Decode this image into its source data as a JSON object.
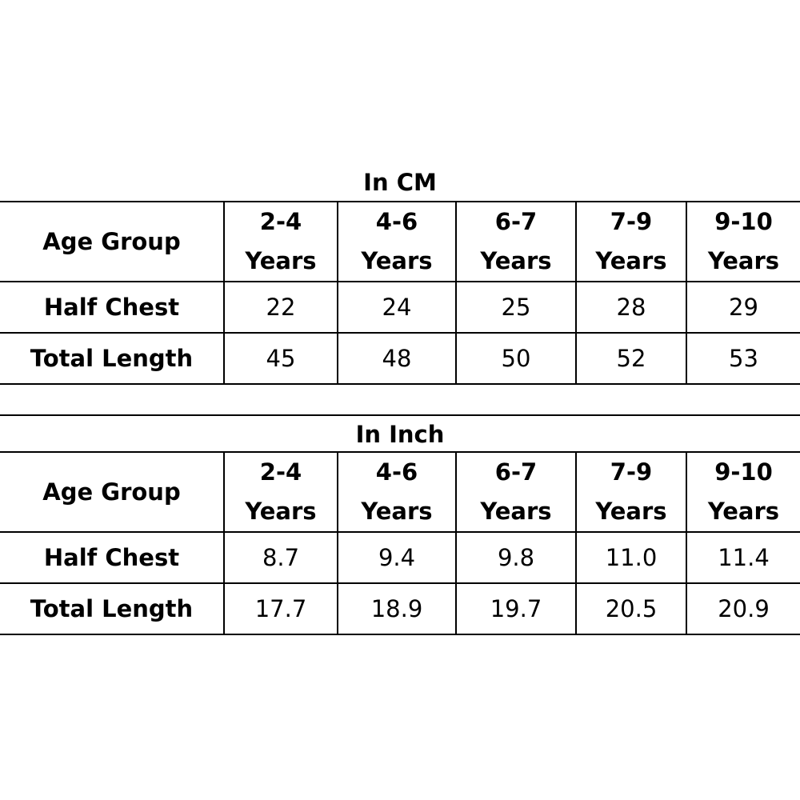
{
  "tables": [
    {
      "title": "In CM",
      "header_label": "Age Group",
      "age_groups": [
        {
          "range": "2-4",
          "unit": "Years"
        },
        {
          "range": "4-6",
          "unit": "Years"
        },
        {
          "range": "6-7",
          "unit": "Years"
        },
        {
          "range": "7-9",
          "unit": "Years"
        },
        {
          "range": "9-10",
          "unit": "Years"
        }
      ],
      "rows": [
        {
          "label": "Half Chest",
          "values": [
            "22",
            "24",
            "25",
            "28",
            "29"
          ]
        },
        {
          "label": "Total Length",
          "values": [
            "45",
            "48",
            "50",
            "52",
            "53"
          ]
        }
      ]
    },
    {
      "title": "In Inch",
      "header_label": "Age Group",
      "age_groups": [
        {
          "range": "2-4",
          "unit": "Years"
        },
        {
          "range": "4-6",
          "unit": "Years"
        },
        {
          "range": "6-7",
          "unit": "Years"
        },
        {
          "range": "7-9",
          "unit": "Years"
        },
        {
          "range": "9-10",
          "unit": "Years"
        }
      ],
      "rows": [
        {
          "label": "Half Chest",
          "values": [
            "8.7",
            "9.4",
            "9.8",
            "11.0",
            "11.4"
          ]
        },
        {
          "label": "Total Length",
          "values": [
            "17.7",
            "18.9",
            "19.7",
            "20.5",
            "20.9"
          ]
        }
      ]
    }
  ]
}
